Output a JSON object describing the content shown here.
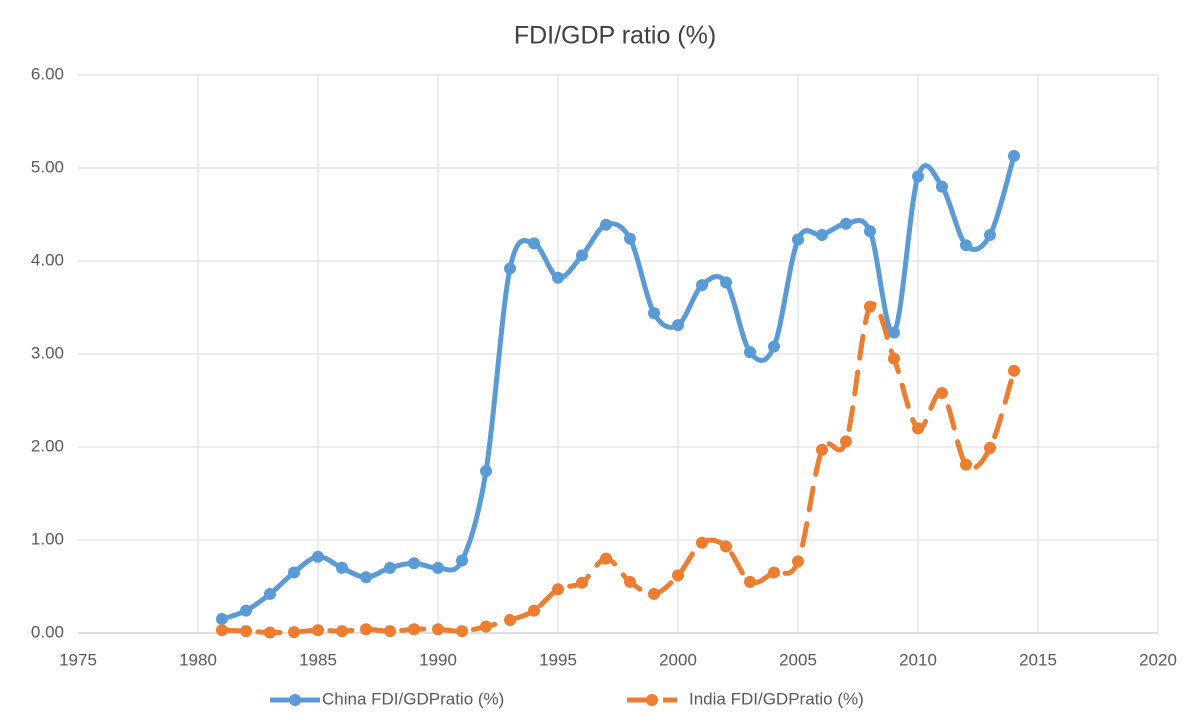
{
  "chart_data": {
    "type": "line",
    "title": "FDI/GDP ratio (%)",
    "x": [
      1981,
      1982,
      1983,
      1984,
      1985,
      1986,
      1987,
      1988,
      1989,
      1990,
      1991,
      1992,
      1993,
      1994,
      1995,
      1996,
      1997,
      1998,
      1999,
      2000,
      2001,
      2002,
      2003,
      2004,
      2005,
      2006,
      2007,
      2008,
      2009,
      2010,
      2011,
      2012,
      2013,
      2014
    ],
    "series": [
      {
        "name": "China FDI/GDPratio (%)",
        "color": "#5b9bd5",
        "line_style": "solid",
        "values": [
          0.15,
          0.24,
          0.42,
          0.65,
          0.82,
          0.7,
          0.6,
          0.7,
          0.75,
          0.7,
          0.78,
          1.74,
          3.92,
          4.19,
          3.82,
          4.06,
          4.39,
          4.24,
          3.44,
          3.31,
          3.74,
          3.77,
          3.02,
          3.08,
          4.23,
          4.28,
          4.4,
          4.32,
          3.23,
          4.91,
          4.8,
          4.17,
          4.28,
          5.13
        ]
      },
      {
        "name": "India FDI/GDPratio (%)",
        "color": "#ed7d31",
        "line_style": "dashed",
        "values": [
          0.03,
          0.02,
          0.005,
          0.01,
          0.03,
          0.02,
          0.04,
          0.02,
          0.04,
          0.04,
          0.02,
          0.07,
          0.14,
          0.24,
          0.47,
          0.54,
          0.8,
          0.55,
          0.42,
          0.62,
          0.97,
          0.93,
          0.55,
          0.65,
          0.77,
          1.97,
          2.06,
          3.51,
          2.95,
          2.2,
          2.58,
          1.81,
          1.99,
          2.82
        ]
      }
    ],
    "xlim": [
      1975,
      2020
    ],
    "xticks": [
      1975,
      1980,
      1985,
      1990,
      1995,
      2000,
      2005,
      2010,
      2015,
      2020
    ],
    "ylim": [
      0,
      6
    ],
    "yticks": [
      {
        "value": 0,
        "label": "0.00"
      },
      {
        "value": 1,
        "label": "1.00"
      },
      {
        "value": 2,
        "label": "2.00"
      },
      {
        "value": 3,
        "label": "3.00"
      },
      {
        "value": 4,
        "label": "4.00"
      },
      {
        "value": 5,
        "label": "5.00"
      },
      {
        "value": 6,
        "label": "6.00"
      }
    ],
    "grid": true,
    "smooth": true,
    "legend": "bottom"
  }
}
